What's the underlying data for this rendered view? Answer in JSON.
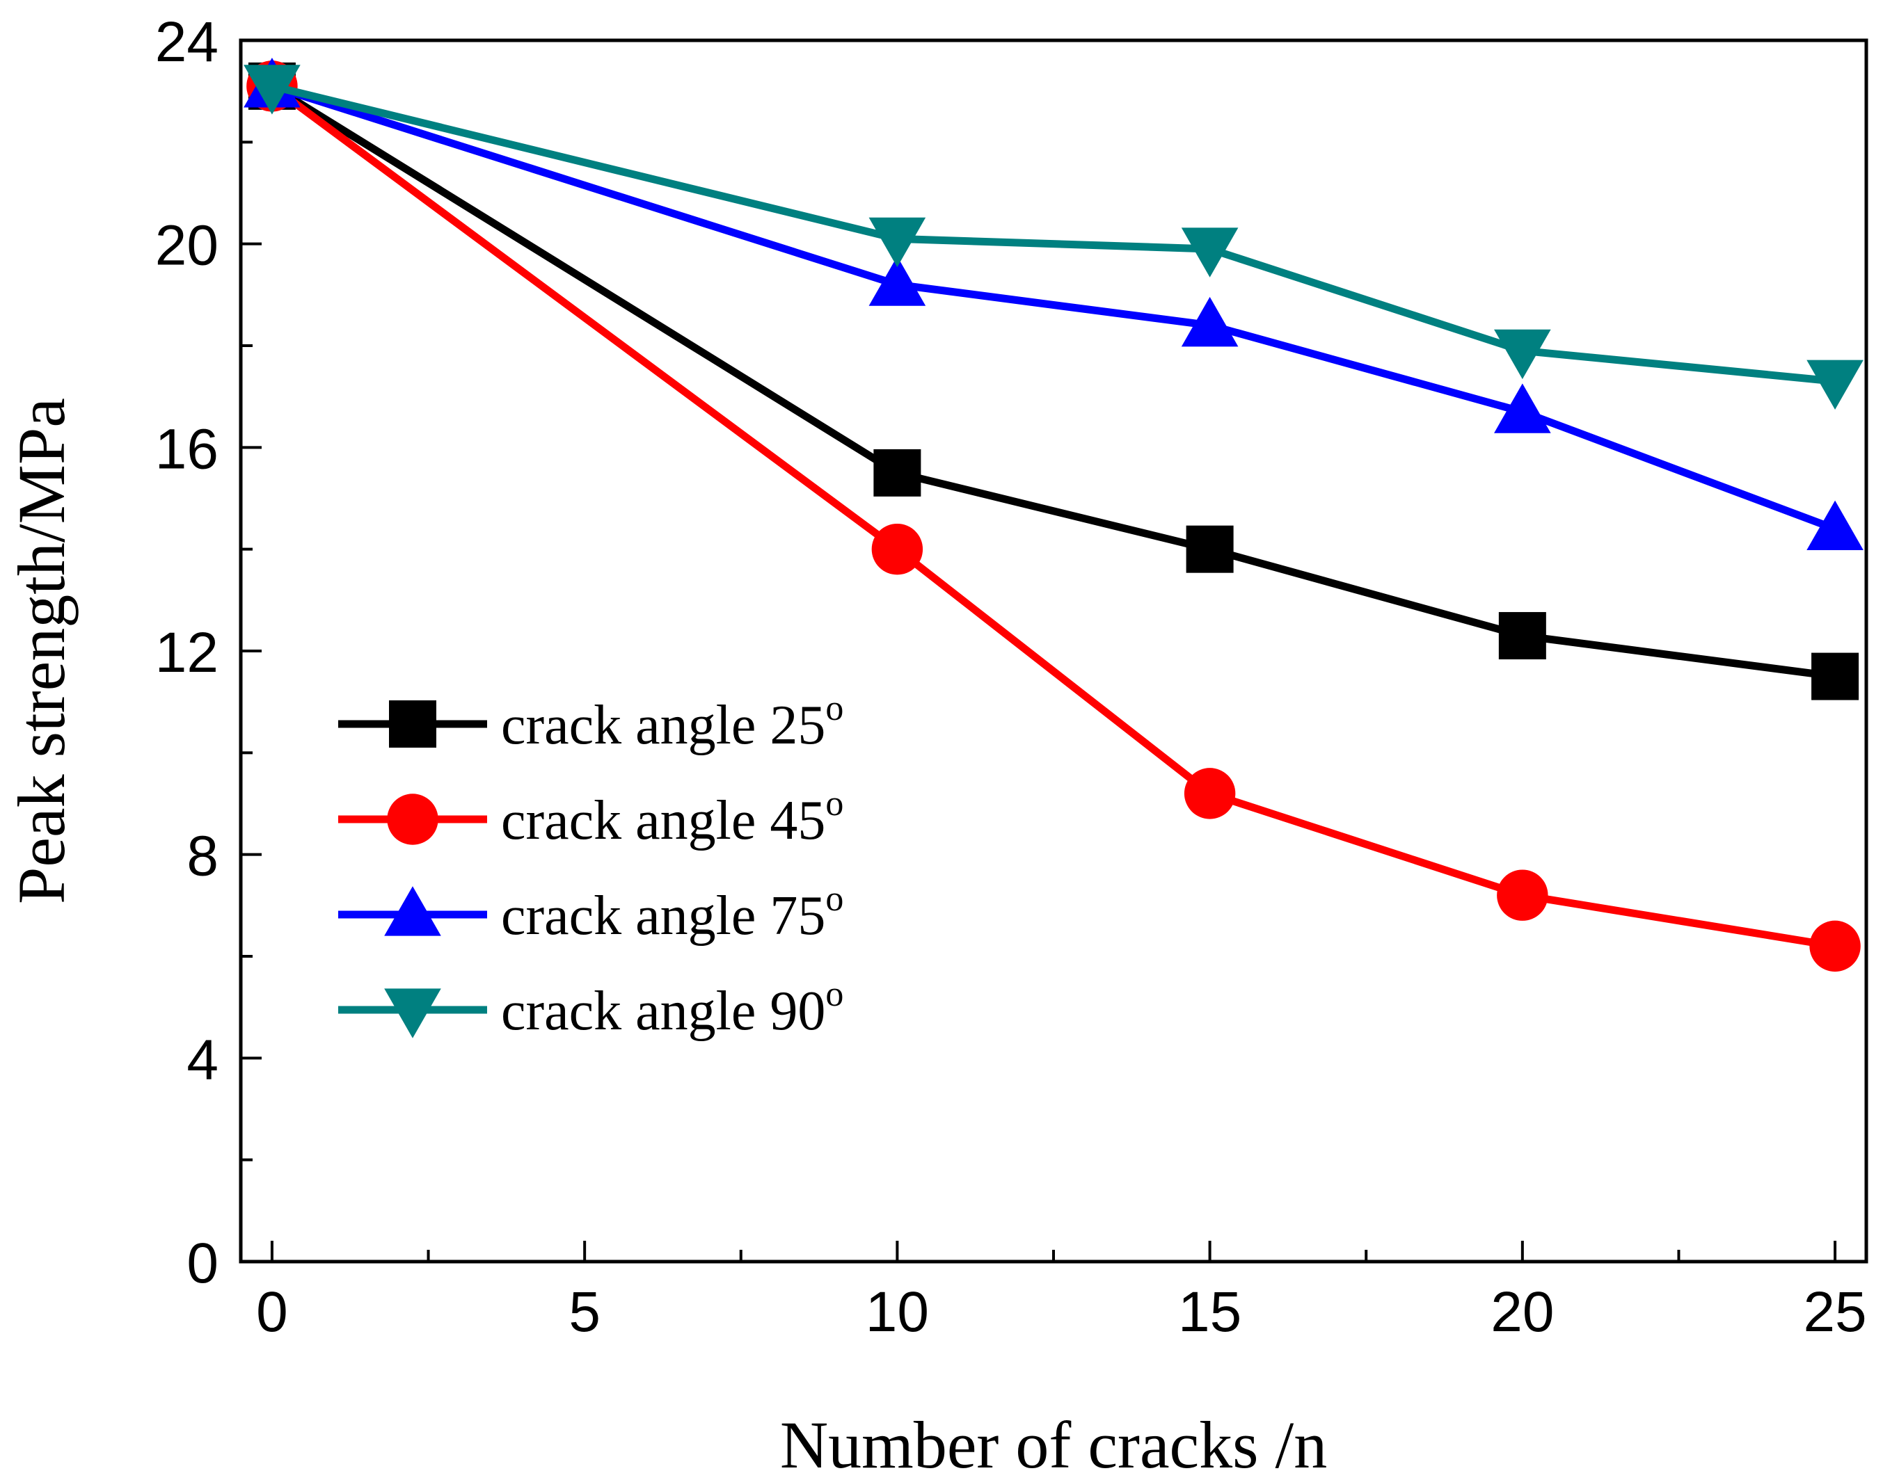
{
  "chart_data": {
    "type": "line",
    "title": "",
    "xlabel": "Number of cracks /n",
    "ylabel": "Peak strength/MPa",
    "xlim": [
      -0.5,
      25.5
    ],
    "ylim": [
      0,
      24
    ],
    "xticks": [
      0,
      5,
      10,
      15,
      20,
      25
    ],
    "yticks": [
      0,
      4,
      8,
      12,
      16,
      20,
      24
    ],
    "xtick_labels": [
      "0",
      "5",
      "10",
      "15",
      "20",
      "25"
    ],
    "ytick_labels": [
      "0",
      "4",
      "8",
      "12",
      "16",
      "20",
      "24"
    ],
    "x": [
      0,
      10,
      15,
      20,
      25
    ],
    "legend_position": "center-left",
    "grid": false,
    "series": [
      {
        "name": "crack angle 25",
        "label": "crack angle 25",
        "sup": "o",
        "marker": "square",
        "color": "#000000",
        "values": [
          23.1,
          15.5,
          14.0,
          12.3,
          11.5
        ]
      },
      {
        "name": "crack angle 45",
        "label": "crack angle 45",
        "sup": "o",
        "marker": "circle",
        "color": "#ff0000",
        "values": [
          23.1,
          14.0,
          9.2,
          7.2,
          6.2
        ]
      },
      {
        "name": "crack angle 75",
        "label": "crack angle 75",
        "sup": "o",
        "marker": "triangle-up",
        "color": "#0000ff",
        "values": [
          23.1,
          19.2,
          18.4,
          16.7,
          14.4
        ]
      },
      {
        "name": "crack angle 90",
        "label": "crack angle 90",
        "sup": "o",
        "marker": "triangle-down",
        "color": "#008080",
        "values": [
          23.1,
          20.1,
          19.9,
          17.9,
          17.3
        ]
      }
    ]
  }
}
